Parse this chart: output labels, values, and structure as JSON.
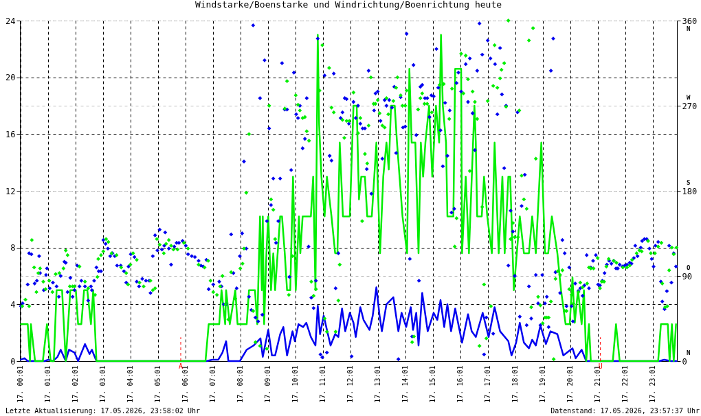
{
  "chart_data": {
    "type": "line",
    "title": "Windstarke/Boenstarke und Windrichtung/Boenrichtung heute",
    "annotations": [
      "Letzte Aktualisierung: 17.05.2026, 23:58:02 Uhr",
      "Datenstand: 17.05.2026, 23:57:37 Uhr",
      "N",
      "O",
      "S",
      "W",
      "N"
    ],
    "xlim": [
      "2026-05-17T00:00",
      "2026-05-17T23:54"
    ],
    "xticks": [
      {
        "value": "2026-05-17T00:01",
        "label": "17. 00:01"
      },
      {
        "value": "2026-05-17T01:01",
        "label": "17. 01:01"
      },
      {
        "value": "2026-05-17T02:01",
        "label": "17. 02:01"
      },
      {
        "value": "2026-05-17T03:01",
        "label": "17. 03:01"
      },
      {
        "value": "2026-05-17T04:01",
        "label": "17. 04:01"
      },
      {
        "value": "2026-05-17T05:01",
        "label": "17. 05:01"
      },
      {
        "value": "2026-05-17T06:01",
        "label": "17. 06:01"
      },
      {
        "value": "2026-05-17T07:01",
        "label": "17. 07:01"
      },
      {
        "value": "2026-05-17T08:01",
        "label": "17. 08:01"
      },
      {
        "value": "2026-05-17T09:01",
        "label": "17. 09:01"
      },
      {
        "value": "2026-05-17T10:01",
        "label": "17. 10:01"
      },
      {
        "value": "2026-05-17T11:01",
        "label": "17. 11:01"
      },
      {
        "value": "2026-05-17T12:01",
        "label": "17. 12:01"
      },
      {
        "value": "2026-05-17T13:01",
        "label": "17. 13:01"
      },
      {
        "value": "2026-05-17T14:01",
        "label": "17. 14:01"
      },
      {
        "value": "2026-05-17T15:01",
        "label": "17. 15:01"
      },
      {
        "value": "2026-05-17T16:01",
        "label": "17. 16:01"
      },
      {
        "value": "2026-05-17T17:01",
        "label": "17. 17:01"
      },
      {
        "value": "2026-05-17T18:01",
        "label": "17. 18:01"
      },
      {
        "value": "2026-05-17T19:01",
        "label": "17. 19:01"
      },
      {
        "value": "2026-05-17T20:01",
        "label": "17. 20:01"
      },
      {
        "value": "2026-05-17T21:01",
        "label": "17. 21:01"
      },
      {
        "value": "2026-05-17T22:01",
        "label": "17. 22:01"
      },
      {
        "value": "2026-05-17T23:01",
        "label": "17. 23:01"
      }
    ],
    "ylim": [
      0,
      24
    ],
    "yticks": [
      0,
      4,
      8,
      12,
      16,
      20,
      24
    ],
    "y2lim": [
      0,
      360
    ],
    "y2ticks": [
      0,
      90,
      180,
      270,
      360
    ],
    "grid": true,
    "ref_lines": [
      {
        "axis": "x",
        "value": "2026-05-17T05:51",
        "label": "A",
        "color": "#ff0000",
        "line_style": "dashed"
      },
      {
        "axis": "x",
        "value": "2026-05-17T21:07",
        "label": "U",
        "color": "#ff0000",
        "line_style": "dashed"
      }
    ],
    "series": [
      {
        "color": "#0000f0",
        "x": [
          "2026-05-17T00:02",
          "2026-05-17T00:10",
          "2026-05-17T00:17",
          "2026-05-17T00:54",
          "2026-05-17T01:02",
          "2026-05-17T01:12",
          "2026-05-17T01:22",
          "2026-05-17T01:29",
          "2026-05-17T01:40",
          "2026-05-17T01:47",
          "2026-05-17T01:59",
          "2026-05-17T02:07",
          "2026-05-17T02:22",
          "2026-05-17T02:32",
          "2026-05-17T02:37",
          "2026-05-17T02:47",
          "2026-05-17T06:47",
          "2026-05-17T07:00",
          "2026-05-17T07:13",
          "2026-05-17T07:22",
          "2026-05-17T07:30",
          "2026-05-17T07:35",
          "2026-05-17T08:00",
          "2026-05-17T08:15",
          "2026-05-17T08:30",
          "2026-05-17T08:45",
          "2026-05-17T08:50",
          "2026-05-17T09:02",
          "2026-05-17T09:10",
          "2026-05-17T09:17",
          "2026-05-17T09:28",
          "2026-05-17T09:35",
          "2026-05-17T09:43",
          "2026-05-17T09:55",
          "2026-05-17T10:00",
          "2026-05-17T10:08",
          "2026-05-17T10:18",
          "2026-05-17T10:25",
          "2026-05-17T10:35",
          "2026-05-17T10:45",
          "2026-05-17T10:50",
          "2026-05-17T10:55",
          "2026-05-17T11:03",
          "2026-05-17T11:10",
          "2026-05-17T11:18",
          "2026-05-17T11:28",
          "2026-05-17T11:35",
          "2026-05-17T11:43",
          "2026-05-17T11:50",
          "2026-05-17T12:00",
          "2026-05-17T12:08",
          "2026-05-17T12:13",
          "2026-05-17T12:23",
          "2026-05-17T12:30",
          "2026-05-17T12:43",
          "2026-05-17T12:50",
          "2026-05-17T12:58",
          "2026-05-17T13:05",
          "2026-05-17T13:10",
          "2026-05-17T13:20",
          "2026-05-17T13:35",
          "2026-05-17T13:46",
          "2026-05-17T13:53",
          "2026-05-17T14:03",
          "2026-05-17T14:13",
          "2026-05-17T14:18",
          "2026-05-17T14:25",
          "2026-05-17T14:30",
          "2026-05-17T14:38",
          "2026-05-17T14:50",
          "2026-05-17T15:03",
          "2026-05-17T15:11",
          "2026-05-17T15:18",
          "2026-05-17T15:26",
          "2026-05-17T15:33",
          "2026-05-17T15:41",
          "2026-05-17T15:50",
          "2026-05-17T16:05",
          "2026-05-17T16:18",
          "2026-05-17T16:26",
          "2026-05-17T16:35",
          "2026-05-17T16:50",
          "2026-05-17T17:03",
          "2026-05-17T17:16",
          "2026-05-17T17:28",
          "2026-05-17T17:46",
          "2026-05-17T17:53",
          "2026-05-17T18:03",
          "2026-05-17T18:11",
          "2026-05-17T18:20",
          "2026-05-17T18:31",
          "2026-05-17T18:38",
          "2026-05-17T18:46",
          "2026-05-17T18:56",
          "2026-05-17T19:08",
          "2026-05-17T19:18",
          "2026-05-17T19:33",
          "2026-05-17T19:46",
          "2026-05-17T20:06",
          "2026-05-17T20:13",
          "2026-05-17T20:26",
          "2026-05-17T20:36",
          "2026-05-17T23:16",
          "2026-05-17T23:26",
          "2026-05-17T23:41",
          "2026-05-17T23:53"
        ],
        "values": [
          0.1,
          0.2,
          0,
          0,
          0.1,
          0,
          0.3,
          0.8,
          0,
          0.8,
          0.6,
          0,
          1.2,
          0.5,
          0.8,
          0,
          0,
          0.1,
          0.1,
          0.6,
          1.4,
          0,
          0,
          0.8,
          1.1,
          1.6,
          0.3,
          2.2,
          0.4,
          0.4,
          1.9,
          2.4,
          0.4,
          2.1,
          1.4,
          2.6,
          2.4,
          2.7,
          1.7,
          1.1,
          3.9,
          1.9,
          3.2,
          2.2,
          1.1,
          1.9,
          1.7,
          3.7,
          2.1,
          3.4,
          2.7,
          1.7,
          3.8,
          2.9,
          2.2,
          3.2,
          5.2,
          3.2,
          2.1,
          4.0,
          4.5,
          2.1,
          3.4,
          2.4,
          3.8,
          2.2,
          3.4,
          1.1,
          4.8,
          2.1,
          3.4,
          2.9,
          4.3,
          2.4,
          4.0,
          2.1,
          3.7,
          1.3,
          3.3,
          2.1,
          1.7,
          3.4,
          1.7,
          3.8,
          2.1,
          1.4,
          0.4,
          1.3,
          2.7,
          1.3,
          0.9,
          1.5,
          1.1,
          2.5,
          1.2,
          2.1,
          1.9,
          0.4,
          0.9,
          0.2,
          0.8,
          0,
          0,
          0.1,
          0,
          0
        ]
      },
      {
        "color": "#00ee00",
        "x": [
          "2026-05-17T00:02",
          "2026-05-17T00:17",
          "2026-05-17T00:22",
          "2026-05-17T00:24",
          "2026-05-17T00:33",
          "2026-05-17T00:50",
          "2026-05-17T00:59",
          "2026-05-17T01:07",
          "2026-05-17T01:14",
          "2026-05-17T01:20",
          "2026-05-17T01:32",
          "2026-05-17T01:40",
          "2026-05-17T01:50",
          "2026-05-17T02:02",
          "2026-05-17T02:07",
          "2026-05-17T02:14",
          "2026-05-17T02:20",
          "2026-05-17T02:27",
          "2026-05-17T02:35",
          "2026-05-17T02:40",
          "2026-05-17T02:47",
          "2026-05-17T06:45",
          "2026-05-17T06:52",
          "2026-05-17T07:15",
          "2026-05-17T07:20",
          "2026-05-17T07:28",
          "2026-05-17T07:30",
          "2026-05-17T07:38",
          "2026-05-17T07:50",
          "2026-05-17T07:55",
          "2026-05-17T08:15",
          "2026-05-17T08:20",
          "2026-05-17T08:33",
          "2026-05-17T08:38",
          "2026-05-17T08:44",
          "2026-05-17T08:48",
          "2026-05-17T08:50",
          "2026-05-17T08:53",
          "2026-05-17T08:58",
          "2026-05-17T09:02",
          "2026-05-17T09:08",
          "2026-05-17T09:13",
          "2026-05-17T09:17",
          "2026-05-17T09:28",
          "2026-05-17T09:32",
          "2026-05-17T09:38",
          "2026-05-17T09:43",
          "2026-05-17T09:50",
          "2026-05-17T09:56",
          "2026-05-17T10:02",
          "2026-05-17T10:09",
          "2026-05-17T10:12",
          "2026-05-17T10:17",
          "2026-05-17T10:35",
          "2026-05-17T10:40",
          "2026-05-17T10:45",
          "2026-05-17T10:50",
          "2026-05-17T10:53",
          "2026-05-17T10:58",
          "2026-05-17T11:05",
          "2026-05-17T11:10",
          "2026-05-17T11:20",
          "2026-05-17T11:28",
          "2026-05-17T11:33",
          "2026-05-17T11:38",
          "2026-05-17T11:45",
          "2026-05-17T12:00",
          "2026-05-17T12:08",
          "2026-05-17T12:15",
          "2026-05-17T12:20",
          "2026-05-17T12:25",
          "2026-05-17T12:33",
          "2026-05-17T12:38",
          "2026-05-17T12:48",
          "2026-05-17T12:58",
          "2026-05-17T13:06",
          "2026-05-17T13:13",
          "2026-05-17T13:20",
          "2026-05-17T13:25",
          "2026-05-17T13:30",
          "2026-05-17T13:38",
          "2026-05-17T13:43",
          "2026-05-17T13:55",
          "2026-05-17T14:05",
          "2026-05-17T14:10",
          "2026-05-17T14:15",
          "2026-05-17T14:23",
          "2026-05-17T14:30",
          "2026-05-17T14:35",
          "2026-05-17T14:40",
          "2026-05-17T14:45",
          "2026-05-17T14:53",
          "2026-05-17T15:00",
          "2026-05-17T15:08",
          "2026-05-17T15:15",
          "2026-05-17T15:19",
          "2026-05-17T15:23",
          "2026-05-17T15:30",
          "2026-05-17T15:33",
          "2026-05-17T15:46",
          "2026-05-17T15:50",
          "2026-05-17T16:00",
          "2026-05-17T16:03",
          "2026-05-17T16:05",
          "2026-05-17T16:13",
          "2026-05-17T16:20",
          "2026-05-17T16:32",
          "2026-05-17T16:35",
          "2026-05-17T16:38",
          "2026-05-17T16:48",
          "2026-05-17T16:53",
          "2026-05-17T17:00",
          "2026-05-17T17:10",
          "2026-05-17T17:16",
          "2026-05-17T17:25",
          "2026-05-17T17:33",
          "2026-05-17T17:38",
          "2026-05-17T17:46",
          "2026-05-17T17:50",
          "2026-05-17T17:58",
          "2026-05-17T18:11",
          "2026-05-17T18:20",
          "2026-05-17T18:31",
          "2026-05-17T18:38",
          "2026-05-17T18:46",
          "2026-05-17T18:58",
          "2026-05-17T19:06",
          "2026-05-17T19:13",
          "2026-05-17T19:21",
          "2026-05-17T19:33",
          "2026-05-17T19:41",
          "2026-05-17T19:51",
          "2026-05-17T20:00",
          "2026-05-17T20:06",
          "2026-05-17T20:11",
          "2026-05-17T20:18",
          "2026-05-17T20:26",
          "2026-05-17T20:31",
          "2026-05-17T20:36",
          "2026-05-17T20:42",
          "2026-05-17T20:46",
          "2026-05-17T21:34",
          "2026-05-17T21:41",
          "2026-05-17T21:49",
          "2026-05-17T23:13",
          "2026-05-17T23:19",
          "2026-05-17T23:34",
          "2026-05-17T23:38",
          "2026-05-17T23:43",
          "2026-05-17T23:47",
          "2026-05-17T23:52"
        ],
        "values": [
          2.6,
          2.6,
          0,
          2.6,
          0,
          0,
          2.6,
          0,
          0,
          5.0,
          5.0,
          0,
          5.0,
          5.0,
          2.6,
          2.6,
          5.0,
          5.0,
          2.6,
          5.0,
          0,
          0,
          2.6,
          2.6,
          5.0,
          2.6,
          5.0,
          2.6,
          5.0,
          2.6,
          2.6,
          5.0,
          5.0,
          2.6,
          10.2,
          5.0,
          10.2,
          2.6,
          7.6,
          10.2,
          5.0,
          7.6,
          5.0,
          10.2,
          10.2,
          7.6,
          5.0,
          5.0,
          13.0,
          5.0,
          10.2,
          7.6,
          10.2,
          10.2,
          13.0,
          5.0,
          23.0,
          16.7,
          13.0,
          10.2,
          13.0,
          10.2,
          7.6,
          7.6,
          15.4,
          10.2,
          10.2,
          18.0,
          18.0,
          11.4,
          13.0,
          13.0,
          10.2,
          10.2,
          15.4,
          7.6,
          13.0,
          15.4,
          13.5,
          18.0,
          18.0,
          15.4,
          10.2,
          7.6,
          20.6,
          15.4,
          15.4,
          7.6,
          15.4,
          13.0,
          15.4,
          18.0,
          13.0,
          18.0,
          15.4,
          23.0,
          18.0,
          15.4,
          10.2,
          10.2,
          20.6,
          20.6,
          20.6,
          7.6,
          13.0,
          7.6,
          18.0,
          15.4,
          10.2,
          10.2,
          13.0,
          10.2,
          7.6,
          15.4,
          7.6,
          13.0,
          7.6,
          13.0,
          13.0,
          5.0,
          10.2,
          7.6,
          7.6,
          10.2,
          7.6,
          15.4,
          7.6,
          7.6,
          10.2,
          7.6,
          5.0,
          2.6,
          2.6,
          5.9,
          2.7,
          5.0,
          2.6,
          5.0,
          0,
          2.6,
          0,
          0,
          2.6,
          0,
          0,
          2.6,
          2.6,
          0,
          2.6,
          0,
          2.6
        ]
      },
      {
        "type": "scatter",
        "axis": "y2",
        "marker": "diamond",
        "color": "#0000f0",
        "x": [
          "2026-05-17T00:02",
          "2026-05-17T00:06",
          "2026-05-17T00:17",
          "2026-05-17T00:20",
          "2026-05-17T00:25",
          "2026-05-17T00:32",
          "2026-05-17T00:37",
          "2026-05-17T00:42",
          "2026-05-17T00:44",
          "2026-05-17T00:52",
          "2026-05-17T00:57",
          "2026-05-17T00:59",
          "2026-05-17T01:05",
          "2026-05-17T01:12",
          "2026-05-17T01:20",
          "2026-05-17T01:25",
          "2026-05-17T01:29",
          "2026-05-17T01:37",
          "2026-05-17T01:40",
          "2026-05-17T01:44",
          "2026-05-17T01:50",
          "2026-05-17T01:55",
          "2026-05-17T01:59",
          "2026-05-17T02:05",
          "2026-05-17T02:10",
          "2026-05-17T02:14",
          "2026-05-17T02:22",
          "2026-05-17T02:29",
          "2026-05-17T02:35",
          "2026-05-17T02:37",
          "2026-05-17T02:42",
          "2026-05-17T02:47",
          "2026-05-17T02:52",
          "2026-05-17T02:57",
          "2026-05-17T03:02",
          "2026-05-17T03:07",
          "2026-05-17T03:12",
          "2026-05-17T03:17",
          "2026-05-17T03:22",
          "2026-05-17T03:27",
          "2026-05-17T03:32",
          "2026-05-17T03:40",
          "2026-05-17T03:47",
          "2026-05-17T03:52",
          "2026-05-17T03:57",
          "2026-05-17T04:02",
          "2026-05-17T04:10",
          "2026-05-17T04:15",
          "2026-05-17T04:20",
          "2026-05-17T04:27",
          "2026-05-17T04:35",
          "2026-05-17T04:42",
          "2026-05-17T04:45",
          "2026-05-17T04:50",
          "2026-05-17T04:55",
          "2026-05-17T05:00",
          "2026-05-17T05:05",
          "2026-05-17T05:10",
          "2026-05-17T05:15",
          "2026-05-17T05:17",
          "2026-05-17T05:25",
          "2026-05-17T05:30",
          "2026-05-17T05:37",
          "2026-05-17T05:42",
          "2026-05-17T05:47",
          "2026-05-17T05:55",
          "2026-05-17T06:02",
          "2026-05-17T06:07",
          "2026-05-17T06:15",
          "2026-05-17T06:22",
          "2026-05-17T06:30",
          "2026-05-17T06:35",
          "2026-05-17T06:40",
          "2026-05-17T06:47",
          "2026-05-17T06:52",
          "2026-05-17T07:02",
          "2026-05-17T07:15",
          "2026-05-17T07:20",
          "2026-05-17T07:25",
          "2026-05-17T07:30",
          "2026-05-17T07:41",
          "2026-05-17T07:46",
          "2026-05-17T07:53",
          "2026-05-17T08:00",
          "2026-05-17T08:05",
          "2026-05-17T08:09",
          "2026-05-17T08:14",
          "2026-05-17T08:20",
          "2026-05-17T08:25",
          "2026-05-17T08:29",
          "2026-05-17T08:34",
          "2026-05-17T08:40",
          "2026-05-17T08:44",
          "2026-05-17T08:49",
          "2026-05-17T08:54",
          "2026-05-17T08:59",
          "2026-05-17T09:04",
          "2026-05-17T09:08",
          "2026-05-17T09:13",
          "2026-05-17T09:19",
          "2026-05-17T09:24",
          "2026-05-17T09:28",
          "2026-05-17T09:32",
          "2026-05-17T09:38",
          "2026-05-17T09:43",
          "2026-05-17T09:48",
          "2026-05-17T09:52",
          "2026-05-17T09:58",
          "2026-05-17T10:03",
          "2026-05-17T10:07",
          "2026-05-17T10:11",
          "2026-05-17T10:17",
          "2026-05-17T10:22",
          "2026-05-17T10:26",
          "2026-05-17T10:30",
          "2026-05-17T10:36",
          "2026-05-17T10:41",
          "2026-05-17T10:46",
          "2026-05-17T10:50",
          "2026-05-17T10:56",
          "2026-05-17T11:00",
          "2026-05-17T11:05",
          "2026-05-17T11:10",
          "2026-05-17T11:16",
          "2026-05-17T11:20",
          "2026-05-17T11:25",
          "2026-05-17T11:29",
          "2026-05-17T11:35",
          "2026-05-17T11:40",
          "2026-05-17T11:44",
          "2026-05-17T11:49",
          "2026-05-17T11:53",
          "2026-05-17T11:58",
          "2026-05-17T12:04",
          "2026-05-17T12:08",
          "2026-05-17T12:13",
          "2026-05-17T12:18",
          "2026-05-17T12:23",
          "2026-05-17T12:28",
          "2026-05-17T12:33",
          "2026-05-17T12:37",
          "2026-05-17T12:41",
          "2026-05-17T12:47",
          "2026-05-17T12:53",
          "2026-05-17T12:56",
          "2026-05-17T13:01",
          "2026-05-17T13:07",
          "2026-05-17T13:11",
          "2026-05-17T13:16",
          "2026-05-17T13:20",
          "2026-05-17T13:26",
          "2026-05-17T13:32",
          "2026-05-17T13:37",
          "2026-05-17T13:41",
          "2026-05-17T13:46",
          "2026-05-17T13:51",
          "2026-05-17T13:56",
          "2026-05-17T14:01",
          "2026-05-17T14:04",
          "2026-05-17T14:11",
          "2026-05-17T14:16",
          "2026-05-17T14:19",
          "2026-05-17T14:25",
          "2026-05-17T14:31",
          "2026-05-17T14:34",
          "2026-05-17T14:38",
          "2026-05-17T14:44",
          "2026-05-17T14:49",
          "2026-05-17T14:54",
          "2026-05-17T14:58",
          "2026-05-17T15:03",
          "2026-05-17T15:09",
          "2026-05-17T15:13",
          "2026-05-17T15:18",
          "2026-05-17T15:23",
          "2026-05-17T15:28",
          "2026-05-17T15:33",
          "2026-05-17T15:38",
          "2026-05-17T15:42",
          "2026-05-17T15:48",
          "2026-05-17T15:53",
          "2026-05-17T15:57",
          "2026-05-17T16:03",
          "2026-05-17T16:13",
          "2026-05-17T16:18",
          "2026-05-17T16:22",
          "2026-05-17T16:28",
          "2026-05-17T16:33",
          "2026-05-17T16:38",
          "2026-05-17T16:43",
          "2026-05-17T16:49",
          "2026-05-17T16:53",
          "2026-05-17T16:58",
          "2026-05-17T17:01",
          "2026-05-17T17:07",
          "2026-05-17T17:13",
          "2026-05-17T17:17",
          "2026-05-17T17:22",
          "2026-05-17T17:28",
          "2026-05-17T17:32",
          "2026-05-17T17:37",
          "2026-05-17T17:41",
          "2026-05-17T17:46",
          "2026-05-17T17:51",
          "2026-05-17T17:56",
          "2026-05-17T18:00",
          "2026-05-17T18:06",
          "2026-05-17T18:11",
          "2026-05-17T18:15",
          "2026-05-17T18:22",
          "2026-05-17T18:26",
          "2026-05-17T18:31",
          "2026-05-17T18:36",
          "2026-05-17T18:46",
          "2026-05-17T18:51",
          "2026-05-17T18:56",
          "2026-05-17T19:00",
          "2026-05-17T19:06",
          "2026-05-17T19:10",
          "2026-05-17T19:14",
          "2026-05-17T19:19",
          "2026-05-17T19:24",
          "2026-05-17T19:29",
          "2026-05-17T19:39",
          "2026-05-17T19:44",
          "2026-05-17T19:49",
          "2026-05-17T19:53",
          "2026-05-17T19:59",
          "2026-05-17T20:04",
          "2026-05-17T20:07",
          "2026-05-17T20:12",
          "2026-05-17T20:19",
          "2026-05-17T20:23",
          "2026-05-17T20:28",
          "2026-05-17T20:32",
          "2026-05-17T20:37",
          "2026-05-17T20:42",
          "2026-05-17T20:46",
          "2026-05-17T20:51",
          "2026-05-17T20:57",
          "2026-05-17T21:02",
          "2026-05-17T21:06",
          "2026-05-17T21:11",
          "2026-05-17T21:16",
          "2026-05-17T21:21",
          "2026-05-17T21:26",
          "2026-05-17T21:31",
          "2026-05-17T21:36",
          "2026-05-17T21:41",
          "2026-05-17T21:45",
          "2026-05-17T21:49",
          "2026-05-17T21:55",
          "2026-05-17T22:00",
          "2026-05-17T22:05",
          "2026-05-17T22:11",
          "2026-05-17T22:15",
          "2026-05-17T22:20",
          "2026-05-17T22:23",
          "2026-05-17T22:28",
          "2026-05-17T22:35",
          "2026-05-17T22:38",
          "2026-05-17T22:43",
          "2026-05-17T22:48",
          "2026-05-17T22:54",
          "2026-05-17T22:59",
          "2026-05-17T23:03",
          "2026-05-17T23:07",
          "2026-05-17T23:13",
          "2026-05-17T23:19",
          "2026-05-17T23:22",
          "2026-05-17T23:27",
          "2026-05-17T23:32",
          "2026-05-17T23:37",
          "2026-05-17T23:42",
          "2026-05-17T23:47",
          "2026-05-17T23:52"
        ],
        "values": [
          58,
          61,
          81,
          114,
          113,
          82,
          85,
          111,
          93,
          75,
          91,
          98,
          77,
          83,
          79,
          68,
          90,
          105,
          104,
          73,
          88,
          68,
          75,
          101,
          79,
          85,
          79,
          64,
          79,
          75,
          85,
          99,
          95,
          95,
          128,
          124,
          119,
          111,
          114,
          111,
          101,
          101,
          95,
          83,
          100,
          113,
          110,
          84,
          79,
          87,
          85,
          85,
          72,
          111,
          133,
          117,
          139,
          118,
          122,
          136,
          119,
          102,
          121,
          125,
          125,
          127,
          122,
          113,
          111,
          110,
          106,
          101,
          100,
          107,
          76,
          81,
          84,
          79,
          60,
          60,
          134,
          93,
          77,
          111,
          135,
          211,
          119,
          68,
          54,
          355,
          46,
          42,
          278,
          49,
          318,
          148,
          246,
          165,
          193,
          125,
          148,
          193,
          315,
          266,
          266,
          89,
          202,
          305,
          261,
          257,
          270,
          225,
          235,
          278,
          121,
          67,
          56,
          85,
          341,
          7,
          4,
          302,
          9,
          217,
          212,
          304,
          77,
          114,
          257,
          263,
          278,
          277,
          251,
          5,
          274,
          257,
          270,
          251,
          246,
          246,
          203,
          307,
          177,
          265,
          283,
          285,
          254,
          214,
          276,
          270,
          276,
          268,
          290,
          220,
          2,
          279,
          247,
          248,
          346,
          108,
          26,
          313,
          239,
          85,
          290,
          292,
          278,
          278,
          258,
          281,
          280,
          330,
          289,
          244,
          206,
          273,
          217,
          265,
          157,
          161,
          294,
          305,
          285,
          314,
          274,
          320,
          262,
          223,
          307,
          357,
          324,
          7,
          46,
          339,
          320,
          29,
          314,
          261,
          331,
          282,
          204,
          270,
          101,
          159,
          137,
          90,
          263,
          47,
          164,
          197,
          38,
          79,
          45,
          91,
          61,
          38,
          91,
          61,
          68,
          36,
          307,
          341,
          94,
          72,
          128,
          114,
          58,
          99,
          58,
          42,
          82,
          74,
          77,
          69,
          80,
          112,
          77,
          99,
          106,
          112,
          81,
          80,
          85,
          93,
          102,
          106,
          103,
          106,
          98,
          98,
          102,
          100,
          101,
          102,
          104,
          103,
          109,
          122,
          111,
          120,
          127,
          129,
          129,
          119,
          108,
          100,
          122,
          126,
          84,
          63,
          55,
          74,
          122,
          83,
          114,
          100
        ]
      },
      {
        "type": "scatter",
        "axis": "y2",
        "marker": "diamond",
        "color": "#00ee00",
        "x": [
          "2026-05-17T00:05",
          "2026-05-17T00:12",
          "2026-05-17T00:20",
          "2026-05-17T00:26",
          "2026-05-17T00:31",
          "2026-05-17T00:36",
          "2026-05-17T00:40",
          "2026-05-17T00:44",
          "2026-05-17T00:51",
          "2026-05-17T00:56",
          "2026-05-17T01:04",
          "2026-05-17T01:11",
          "2026-05-17T01:18",
          "2026-05-17T01:26",
          "2026-05-17T01:35",
          "2026-05-17T01:40",
          "2026-05-17T01:44",
          "2026-05-17T01:49",
          "2026-05-17T01:55",
          "2026-05-17T01:59",
          "2026-05-17T02:10",
          "2026-05-17T02:22",
          "2026-05-17T02:29",
          "2026-05-17T02:44",
          "2026-05-17T02:49",
          "2026-05-17T02:51",
          "2026-05-17T02:57",
          "2026-05-17T03:02",
          "2026-05-17T03:08",
          "2026-05-17T03:13",
          "2026-05-17T03:20",
          "2026-05-17T03:31",
          "2026-05-17T03:41",
          "2026-05-17T03:52",
          "2026-05-17T03:56",
          "2026-05-17T04:01",
          "2026-05-17T04:07",
          "2026-05-17T04:15",
          "2026-05-17T04:21",
          "2026-05-17T04:30",
          "2026-05-17T04:45",
          "2026-05-17T04:50",
          "2026-05-17T04:55",
          "2026-05-17T04:59",
          "2026-05-17T05:05",
          "2026-05-17T05:14",
          "2026-05-17T05:19",
          "2026-05-17T05:25",
          "2026-05-17T05:30",
          "2026-05-17T05:35",
          "2026-05-17T05:44",
          "2026-05-17T05:58",
          "2026-05-17T06:07",
          "2026-05-17T06:30",
          "2026-05-17T06:43",
          "2026-05-17T06:51",
          "2026-05-17T06:56",
          "2026-05-17T07:02",
          "2026-05-17T07:10",
          "2026-05-17T07:17",
          "2026-05-17T07:22",
          "2026-05-17T07:29",
          "2026-05-17T07:35",
          "2026-05-17T07:41",
          "2026-05-17T07:50",
          "2026-05-17T08:01",
          "2026-05-17T08:06",
          "2026-05-17T08:09",
          "2026-05-17T08:14",
          "2026-05-17T08:20",
          "2026-05-17T08:29",
          "2026-05-17T08:34",
          "2026-05-17T08:44",
          "2026-05-17T08:59",
          "2026-05-17T09:04",
          "2026-05-17T09:08",
          "2026-05-17T09:13",
          "2026-05-17T09:17",
          "2026-05-17T09:38",
          "2026-05-17T09:43",
          "2026-05-17T09:47",
          "2026-05-17T09:55",
          "2026-05-17T10:02",
          "2026-05-17T10:07",
          "2026-05-17T10:11",
          "2026-05-17T10:17",
          "2026-05-17T10:22",
          "2026-05-17T10:26",
          "2026-05-17T10:31",
          "2026-05-17T10:36",
          "2026-05-17T10:41",
          "2026-05-17T10:46",
          "2026-05-17T10:54",
          "2026-05-17T11:00",
          "2026-05-17T11:05",
          "2026-05-17T11:10",
          "2026-05-17T11:15",
          "2026-05-17T11:20",
          "2026-05-17T11:25",
          "2026-05-17T11:29",
          "2026-05-17T11:35",
          "2026-05-17T11:38",
          "2026-05-17T11:44",
          "2026-05-17T11:48",
          "2026-05-17T11:53",
          "2026-05-17T11:59",
          "2026-05-17T12:08",
          "2026-05-17T12:18",
          "2026-05-17T12:23",
          "2026-05-17T12:27",
          "2026-05-17T12:33",
          "2026-05-17T12:38",
          "2026-05-17T12:41",
          "2026-05-17T12:46",
          "2026-05-17T12:52",
          "2026-05-17T12:56",
          "2026-05-17T13:01",
          "2026-05-17T13:05",
          "2026-05-17T13:11",
          "2026-05-17T13:16",
          "2026-05-17T13:20",
          "2026-05-17T13:24",
          "2026-05-17T13:35",
          "2026-05-17T13:41",
          "2026-05-17T13:44",
          "2026-05-17T13:51",
          "2026-05-17T13:55",
          "2026-05-17T14:01",
          "2026-05-17T14:04",
          "2026-05-17T14:16",
          "2026-05-17T14:20",
          "2026-05-17T14:29",
          "2026-05-17T14:34",
          "2026-05-17T14:38",
          "2026-05-17T14:43",
          "2026-05-17T14:49",
          "2026-05-17T14:59",
          "2026-05-17T15:16",
          "2026-05-17T15:25",
          "2026-05-17T15:37",
          "2026-05-17T15:43",
          "2026-05-17T15:49",
          "2026-05-17T15:53",
          "2026-05-17T16:03",
          "2026-05-17T16:08",
          "2026-05-17T16:13",
          "2026-05-17T16:18",
          "2026-05-17T16:22",
          "2026-05-17T16:28",
          "2026-05-17T16:33",
          "2026-05-17T16:38",
          "2026-05-17T16:43",
          "2026-05-17T16:49",
          "2026-05-17T16:53",
          "2026-05-17T16:58",
          "2026-05-17T17:01",
          "2026-05-17T17:08",
          "2026-05-17T17:13",
          "2026-05-17T17:16",
          "2026-05-17T17:22",
          "2026-05-17T17:28",
          "2026-05-17T17:31",
          "2026-05-17T17:37",
          "2026-05-17T17:41",
          "2026-05-17T17:46",
          "2026-05-17T17:51",
          "2026-05-17T17:56",
          "2026-05-17T18:00",
          "2026-05-17T18:07",
          "2026-05-17T18:10",
          "2026-05-17T18:15",
          "2026-05-17T18:20",
          "2026-05-17T18:26",
          "2026-05-17T18:31",
          "2026-05-17T18:36",
          "2026-05-17T18:40",
          "2026-05-17T18:46",
          "2026-05-17T18:51",
          "2026-05-17T18:56",
          "2026-05-17T19:01",
          "2026-05-17T19:06",
          "2026-05-17T19:10",
          "2026-05-17T19:14",
          "2026-05-17T19:19",
          "2026-05-17T19:25",
          "2026-05-17T19:29",
          "2026-05-17T19:34",
          "2026-05-17T19:39",
          "2026-05-17T19:44",
          "2026-05-17T19:49",
          "2026-05-17T19:53",
          "2026-05-17T19:59",
          "2026-05-17T20:04",
          "2026-05-17T20:08",
          "2026-05-17T20:19",
          "2026-05-17T20:23",
          "2026-05-17T20:28",
          "2026-05-17T20:38",
          "2026-05-17T20:42",
          "2026-05-17T20:46",
          "2026-05-17T20:52",
          "2026-05-17T21:01",
          "2026-05-17T21:06",
          "2026-05-17T21:10",
          "2026-05-17T21:15",
          "2026-05-17T21:20",
          "2026-05-17T21:25",
          "2026-05-17T21:36",
          "2026-05-17T21:42",
          "2026-05-17T21:56",
          "2026-05-17T22:05",
          "2026-05-17T22:11",
          "2026-05-17T22:16",
          "2026-05-17T22:26",
          "2026-05-17T22:32",
          "2026-05-17T22:37",
          "2026-05-17T22:51",
          "2026-05-17T22:57",
          "2026-05-17T23:06",
          "2026-05-17T23:13",
          "2026-05-17T23:20",
          "2026-05-17T23:22",
          "2026-05-17T23:28",
          "2026-05-17T23:33",
          "2026-05-17T23:37",
          "2026-05-17T23:43",
          "2026-05-17T23:47",
          "2026-05-17T23:53"
        ],
        "values": [
          58,
          65,
          58,
          128,
          99,
          73,
          93,
          98,
          84,
          76,
          85,
          73,
          92,
          93,
          98,
          117,
          112,
          79,
          79,
          79,
          100,
          84,
          77,
          70,
          89,
          108,
          112,
          116,
          129,
          126,
          114,
          112,
          99,
          93,
          81,
          102,
          114,
          107,
          83,
          79,
          85,
          75,
          77,
          129,
          123,
          114,
          124,
          128,
          122,
          118,
          118,
          125,
          119,
          102,
          99,
          106,
          85,
          73,
          70,
          79,
          90,
          60,
          44,
          94,
          66,
          98,
          103,
          119,
          178,
          240,
          53,
          20,
          16,
          13,
          270,
          171,
          160,
          129,
          267,
          296,
          70,
          111,
          281,
          271,
          265,
          257,
          258,
          243,
          233,
          84,
          69,
          76,
          286,
          334,
          45,
          31,
          310,
          268,
          263,
          31,
          64,
          102,
          255,
          236,
          254,
          254,
          284,
          241,
          257,
          148,
          219,
          209,
          249,
          300,
          272,
          272,
          276,
          262,
          249,
          247,
          278,
          261,
          275,
          289,
          300,
          281,
          270,
          270,
          286,
          20,
          26,
          266,
          278,
          283,
          272,
          272,
          263,
          292,
          293,
          256,
          288,
          121,
          151,
          325,
          283,
          323,
          298,
          201,
          285,
          274,
          256,
          16,
          163,
          81,
          24,
          275,
          58,
          291,
          334,
          289,
          299,
          308,
          315,
          269,
          360,
          129,
          146,
          131,
          131,
          265,
          196,
          171,
          161,
          339,
          57,
          352,
          214,
          68,
          59,
          40,
          46,
          46,
          46,
          63,
          2,
          87,
          95,
          91,
          96,
          53,
          53,
          76,
          70,
          61,
          73,
          83,
          78,
          82,
          99,
          98,
          98,
          109,
          77,
          84,
          84,
          100,
          108,
          106,
          104,
          99,
          99,
          101,
          107,
          114,
          117,
          116,
          127,
          114,
          114,
          121,
          125,
          82,
          57,
          58,
          96,
          120,
          113,
          120
        ]
      }
    ]
  }
}
